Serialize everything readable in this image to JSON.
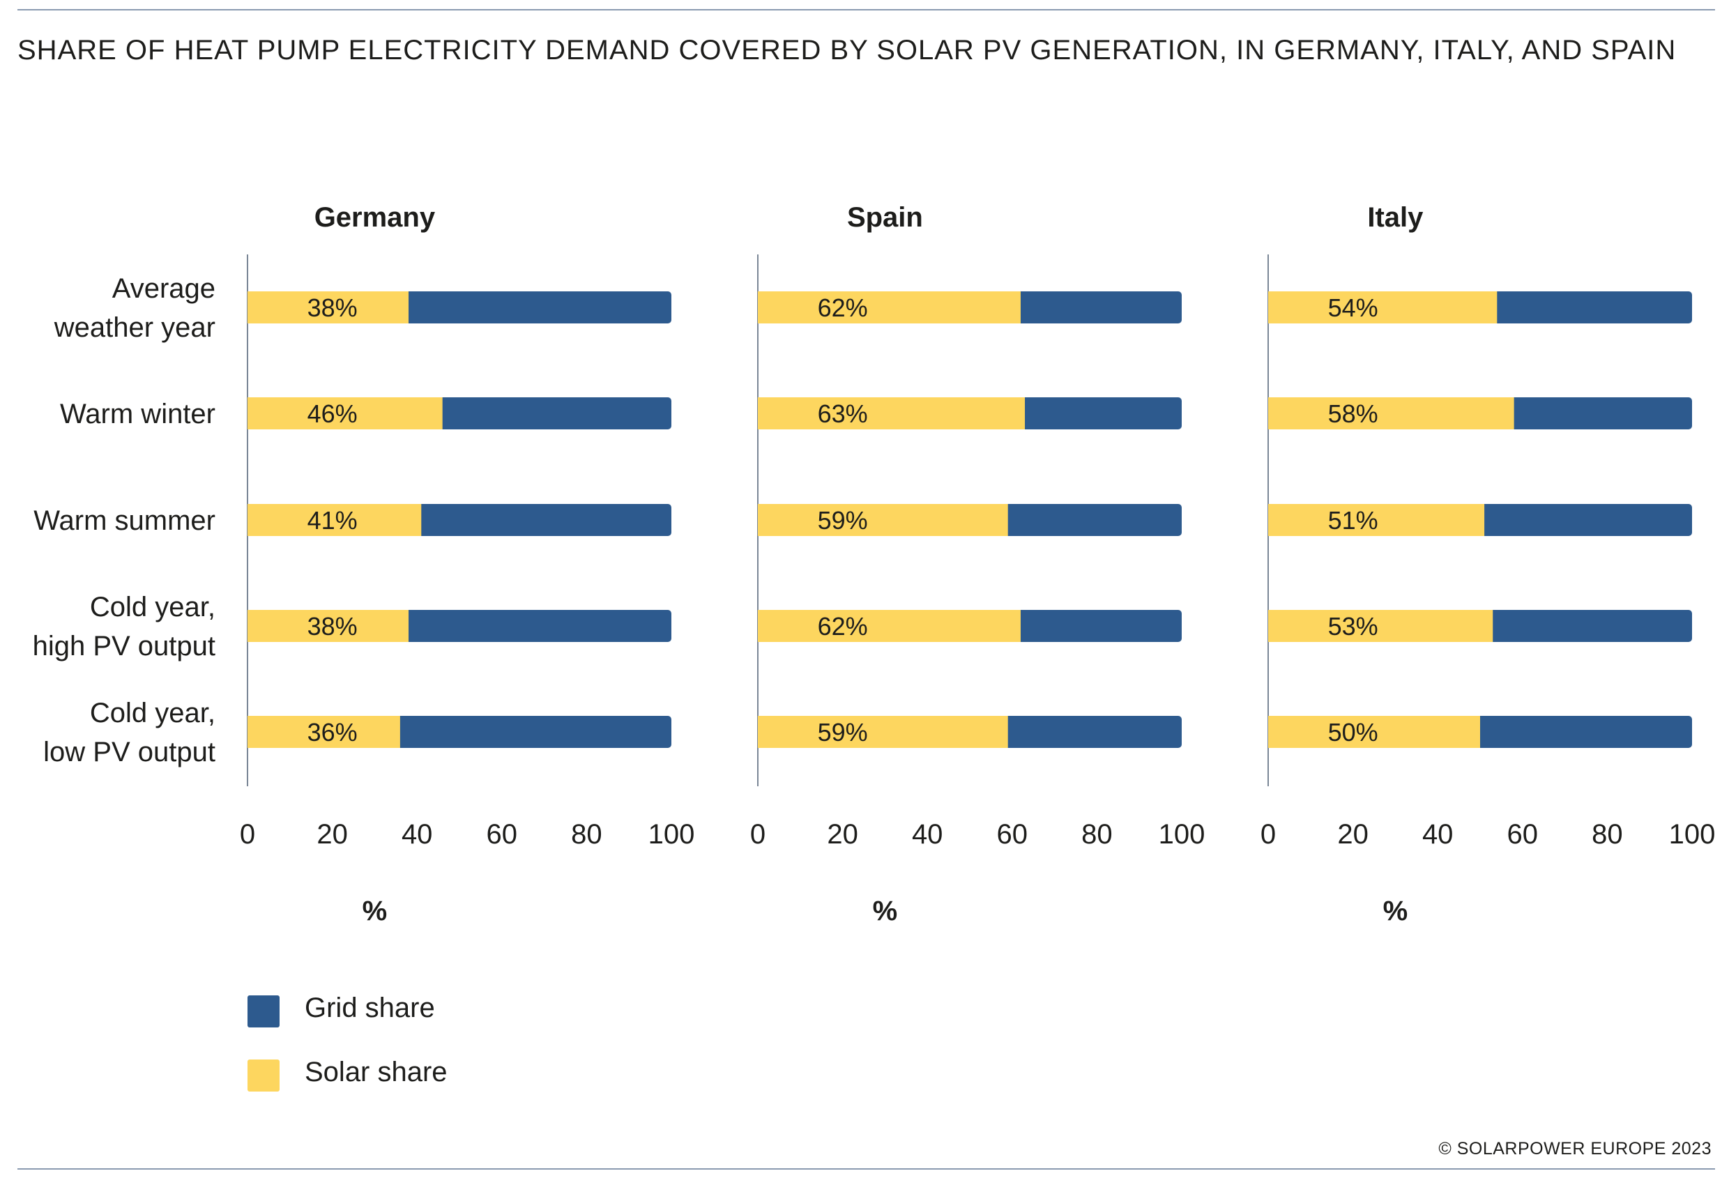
{
  "page": {
    "title": "SHARE OF HEAT PUMP ELECTRICITY DEMAND COVERED BY SOLAR PV GENERATION, IN GERMANY, ITALY, AND SPAIN",
    "copyright": "© SOLARPOWER EUROPE 2023"
  },
  "colors": {
    "grid": "#2d5a8e",
    "solar": "#fdd65f",
    "axis": "#7a8696",
    "text": "#1d1d1b"
  },
  "legend": {
    "items": [
      {
        "label": "Grid share",
        "color": "#2d5a8e"
      },
      {
        "label": "Solar share",
        "color": "#fdd65f"
      }
    ]
  },
  "chart_data": {
    "type": "bar",
    "orientation": "horizontal",
    "stacked": true,
    "categories": [
      [
        "Average",
        "weather year"
      ],
      [
        "Warm winter"
      ],
      [
        "Warm summer"
      ],
      [
        "Cold year,",
        "high PV output"
      ],
      [
        "Cold year,",
        "low PV output"
      ]
    ],
    "xlim": [
      0,
      100
    ],
    "xticks": [
      0,
      20,
      40,
      60,
      80,
      100
    ],
    "xlabel": "%",
    "grid": false,
    "legend_placement": "bottom-left",
    "panels": [
      {
        "title": "Germany",
        "solar": [
          38,
          46,
          41,
          38,
          36
        ]
      },
      {
        "title": "Spain",
        "solar": [
          62,
          63,
          59,
          62,
          59
        ]
      },
      {
        "title": "Italy",
        "solar": [
          54,
          58,
          51,
          53,
          50
        ]
      }
    ],
    "series": [
      {
        "name": "Solar share",
        "color": "#fdd65f"
      },
      {
        "name": "Grid share",
        "color": "#2d5a8e"
      }
    ]
  }
}
